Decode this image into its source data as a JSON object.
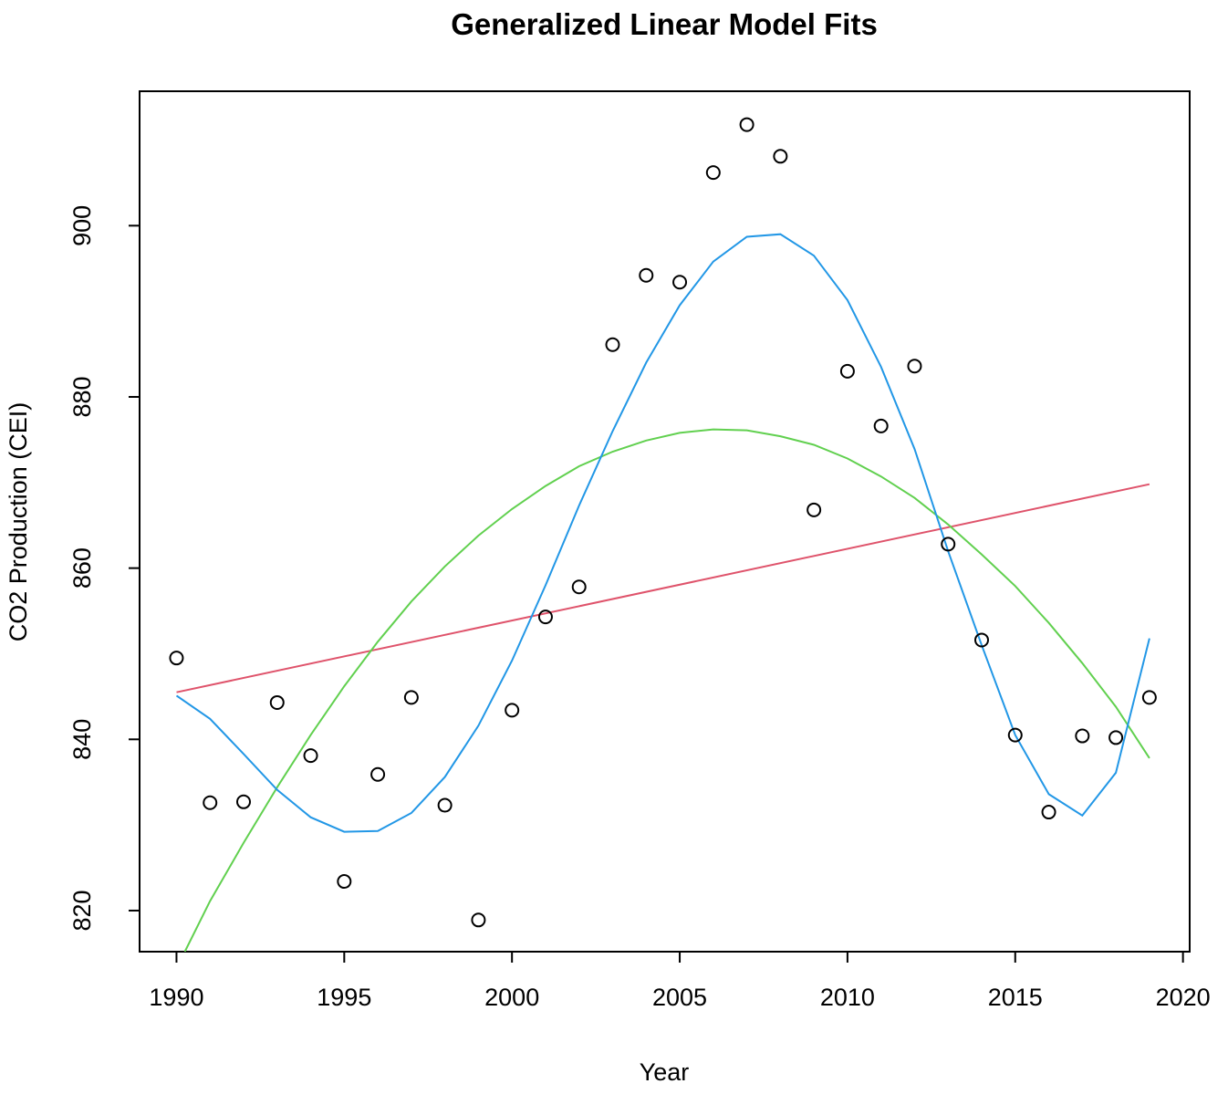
{
  "chart_data": {
    "type": "scatter",
    "title": "Generalized Linear Model Fits",
    "xlabel": "Year",
    "ylabel": "CO2 Production (CEI)",
    "xlim": [
      1988.9,
      2020.2
    ],
    "ylim": [
      815.2,
      915.7
    ],
    "xticks": [
      1990,
      1995,
      2000,
      2005,
      2010,
      2015,
      2020
    ],
    "yticks": [
      820,
      840,
      860,
      880,
      900
    ],
    "grid": false,
    "legend": "none",
    "points": {
      "x": [
        1990,
        1991,
        1992,
        1993,
        1994,
        1995,
        1996,
        1997,
        1998,
        1999,
        2000,
        2001,
        2002,
        2003,
        2004,
        2005,
        2006,
        2007,
        2008,
        2009,
        2010,
        2011,
        2012,
        2013,
        2014,
        2015,
        2016,
        2017,
        2018,
        2019
      ],
      "y": [
        849.5,
        832.6,
        832.7,
        844.3,
        838.1,
        823.4,
        835.9,
        844.9,
        832.3,
        818.9,
        843.4,
        854.3,
        857.8,
        886.1,
        894.2,
        893.4,
        906.2,
        911.8,
        908.1,
        866.8,
        883.0,
        876.6,
        883.6,
        862.8,
        851.6,
        840.5,
        831.5,
        840.4,
        840.2,
        844.9
      ]
    },
    "series": [
      {
        "color": "#df536b",
        "x": [
          1990,
          2019
        ],
        "y": [
          845.5,
          869.8
        ]
      },
      {
        "color": "#61d04f",
        "x": [
          1990.25,
          1991,
          1992,
          1993,
          1994,
          1995,
          1996,
          1997,
          1998,
          1999,
          2000,
          2001,
          2002,
          2003,
          2004,
          2005,
          2006,
          2007,
          2008,
          2009,
          2010,
          2011,
          2012,
          2013,
          2014,
          2015,
          2016,
          2017,
          2018,
          2019
        ],
        "y": [
          815.2,
          821.1,
          827.9,
          834.4,
          840.5,
          846.2,
          851.4,
          856.1,
          860.2,
          863.8,
          866.9,
          869.6,
          871.9,
          873.6,
          874.9,
          875.8,
          876.2,
          876.1,
          875.4,
          874.4,
          872.8,
          870.7,
          868.2,
          865.1,
          861.6,
          857.9,
          853.6,
          848.9,
          843.8,
          837.8
        ]
      },
      {
        "color": "#2297e6",
        "x": [
          1990,
          1991,
          1992,
          1993,
          1994,
          1995,
          1996,
          1997,
          1998,
          1999,
          2000,
          2001,
          2002,
          2003,
          2004,
          2005,
          2006,
          2007,
          2008,
          2009,
          2010,
          2011,
          2012,
          2013,
          2014,
          2015,
          2016,
          2017,
          2018,
          2019
        ],
        "y": [
          845.1,
          842.4,
          838.3,
          834.1,
          830.9,
          829.2,
          829.3,
          831.4,
          835.6,
          841.6,
          849.2,
          858.0,
          867.3,
          876.0,
          884.0,
          890.7,
          895.8,
          898.7,
          899.0,
          896.5,
          891.3,
          883.5,
          873.9,
          862.0,
          851.0,
          840.5,
          833.6,
          831.1,
          836.1,
          851.8
        ]
      }
    ]
  }
}
